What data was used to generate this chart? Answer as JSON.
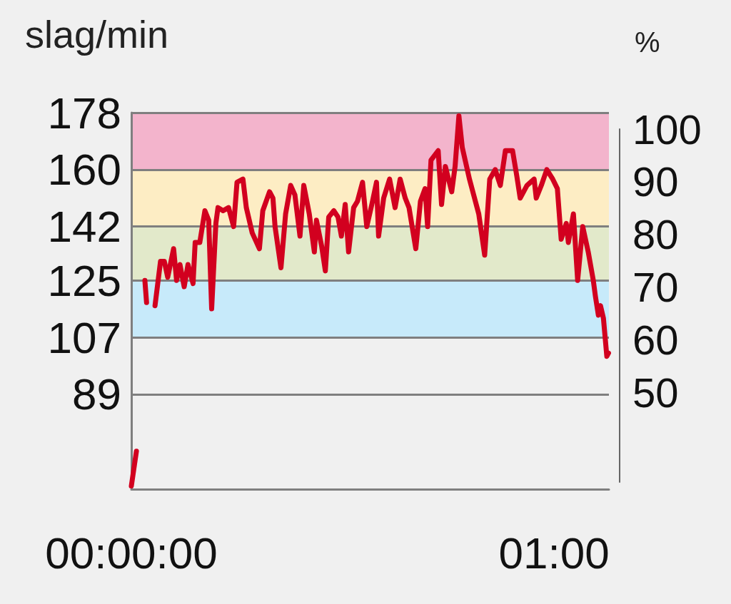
{
  "chart_data": {
    "type": "line",
    "ylabel": "slag/min",
    "y2label": "%",
    "x": [
      0,
      0.012,
      0.02,
      0.032,
      0.036,
      0.045,
      0.056,
      0.069,
      0.078,
      0.086,
      0.1,
      0.107,
      0.115,
      0.125,
      0.134,
      0.146,
      0.151,
      0.162,
      0.174,
      0.183,
      0.19,
      0.2,
      0.205,
      0.217,
      0.23,
      0.242,
      0.25,
      0.264,
      0.272,
      0.286,
      0.303,
      0.311,
      0.327,
      0.335,
      0.34,
      0.354,
      0.365,
      0.377,
      0.387,
      0.399,
      0.408,
      0.421,
      0.433,
      0.438,
      0.45,
      0.459,
      0.467,
      0.479,
      0.489,
      0.497,
      0.506,
      0.514,
      0.526,
      0.535,
      0.547,
      0.557,
      0.569,
      0.58,
      0.585,
      0.597,
      0.611,
      0.624,
      0.636,
      0.648,
      0.657,
      0.673,
      0.684,
      0.695,
      0.701,
      0.709,
      0.726,
      0.734,
      0.743,
      0.758,
      0.766,
      0.775,
      0.783,
      0.8,
      0.81,
      0.822,
      0.836,
      0.848,
      0.861,
      0.873,
      0.885,
      0.902,
      0.912,
      0.92,
      0.936,
      0.953,
      0.958,
      0.97,
      0.983,
      0.997,
      1.008,
      1.017,
      1.029,
      1.034,
      1.046,
      1.056,
      1.068,
      1.081,
      1.093,
      1.098,
      1.105,
      1.11,
      1.117,
      1.125,
      1.129
    ],
    "values": [
      60,
      71,
      null,
      125,
      118,
      null,
      117,
      131,
      131,
      126,
      135,
      125,
      130,
      123,
      130,
      124,
      137,
      137,
      147,
      144,
      116,
      143,
      148,
      147,
      148,
      142,
      156,
      157,
      148,
      140,
      135,
      147,
      153,
      151,
      142,
      129,
      146,
      155,
      152,
      139,
      155,
      146,
      134,
      144,
      136,
      128,
      145,
      147,
      145,
      139,
      149,
      134,
      148,
      150,
      156,
      142,
      149,
      156,
      139,
      151,
      157,
      148,
      157,
      151,
      148,
      135,
      150,
      154,
      142,
      163,
      166,
      149,
      161,
      153,
      161,
      177,
      167,
      157,
      152,
      146,
      133,
      157,
      160,
      155,
      166,
      166,
      158,
      151,
      155,
      157,
      151,
      155,
      160,
      157,
      154,
      138,
      143,
      137,
      146,
      125,
      142,
      134,
      125,
      120,
      114,
      117,
      113,
      101,
      102
    ],
    "color": "#d2001f",
    "xlim": [
      0,
      1.13
    ],
    "xticks": [
      {
        "value": 0,
        "label": "00:00:00"
      },
      {
        "value": 1,
        "label": "01:00"
      }
    ],
    "ylim": [
      59,
      178
    ],
    "yticks": [
      178,
      160,
      142,
      125,
      107,
      89
    ],
    "y2lim": [
      33,
      100
    ],
    "y2ticks": [
      100,
      90,
      80,
      70,
      60,
      50
    ],
    "bands": [
      {
        "axis": "y",
        "from": 160,
        "to": 178,
        "color": "#f3b4cc"
      },
      {
        "axis": "y",
        "from": 142,
        "to": 160,
        "color": "#fdedc4"
      },
      {
        "axis": "y",
        "from": 125,
        "to": 142,
        "color": "#e2e9ca"
      },
      {
        "axis": "y",
        "from": 107,
        "to": 125,
        "color": "#c7eafa"
      }
    ],
    "grid": "y"
  }
}
